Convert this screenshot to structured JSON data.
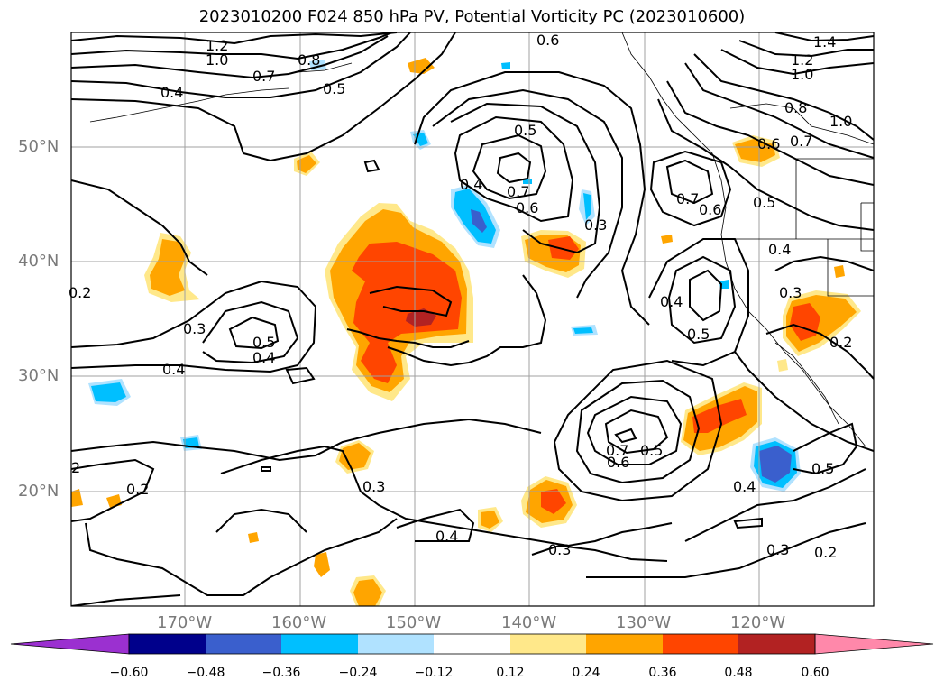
{
  "title": "2023010200 F024 850 hPa PV, Potential Vorticity PC (2023010600)",
  "lat_labels": [
    "50°N",
    "40°N",
    "30°N",
    "20°N"
  ],
  "lon_labels": [
    "170°W",
    "160°W",
    "150°W",
    "140°W",
    "130°W",
    "120°W"
  ],
  "colorbar": {
    "ticks": [
      "−0.60",
      "−0.48",
      "−0.36",
      "−0.24",
      "−0.12",
      "0.12",
      "0.24",
      "0.36",
      "0.48",
      "0.60"
    ],
    "colors": [
      "#9b30d0",
      "#00008b",
      "#3a5fcd",
      "#00bfff",
      "#b0e2ff",
      "#ffffff",
      "#ffe88a",
      "#ffa500",
      "#ff4500",
      "#b22222",
      "#ff88aa"
    ]
  },
  "contour_labels": [
    {
      "text": "1.2"
    },
    {
      "text": "1.0"
    },
    {
      "text": "0.8"
    },
    {
      "text": "0.7"
    },
    {
      "text": "0.5"
    },
    {
      "text": "0.4"
    },
    {
      "text": "0.6"
    },
    {
      "text": "1.4"
    },
    {
      "text": "1.2"
    },
    {
      "text": "1.0"
    },
    {
      "text": "0.8"
    },
    {
      "text": "0.7"
    },
    {
      "text": "1.0"
    },
    {
      "text": "0.6"
    },
    {
      "text": "0.5"
    },
    {
      "text": "0.7"
    },
    {
      "text": "0.6"
    },
    {
      "text": "0.4"
    },
    {
      "text": "0.3"
    },
    {
      "text": "0.7"
    },
    {
      "text": "0.6"
    },
    {
      "text": "0.5"
    },
    {
      "text": "0.4"
    },
    {
      "text": "0.3"
    },
    {
      "text": "0.2"
    },
    {
      "text": "0.2"
    },
    {
      "text": "0.3"
    },
    {
      "text": "0.5"
    },
    {
      "text": "0.4"
    },
    {
      "text": "0.4"
    },
    {
      "text": "0.4"
    },
    {
      "text": "0.5"
    },
    {
      "text": "0.7"
    },
    {
      "text": "0.6"
    },
    {
      "text": "0.5"
    },
    {
      "text": "0.4"
    },
    {
      "text": "0.5"
    },
    {
      "text": "2"
    },
    {
      "text": "0.2"
    },
    {
      "text": "0.3"
    },
    {
      "text": "0.4"
    },
    {
      "text": "0.3"
    },
    {
      "text": "0.3"
    },
    {
      "text": "0.2"
    }
  ]
}
